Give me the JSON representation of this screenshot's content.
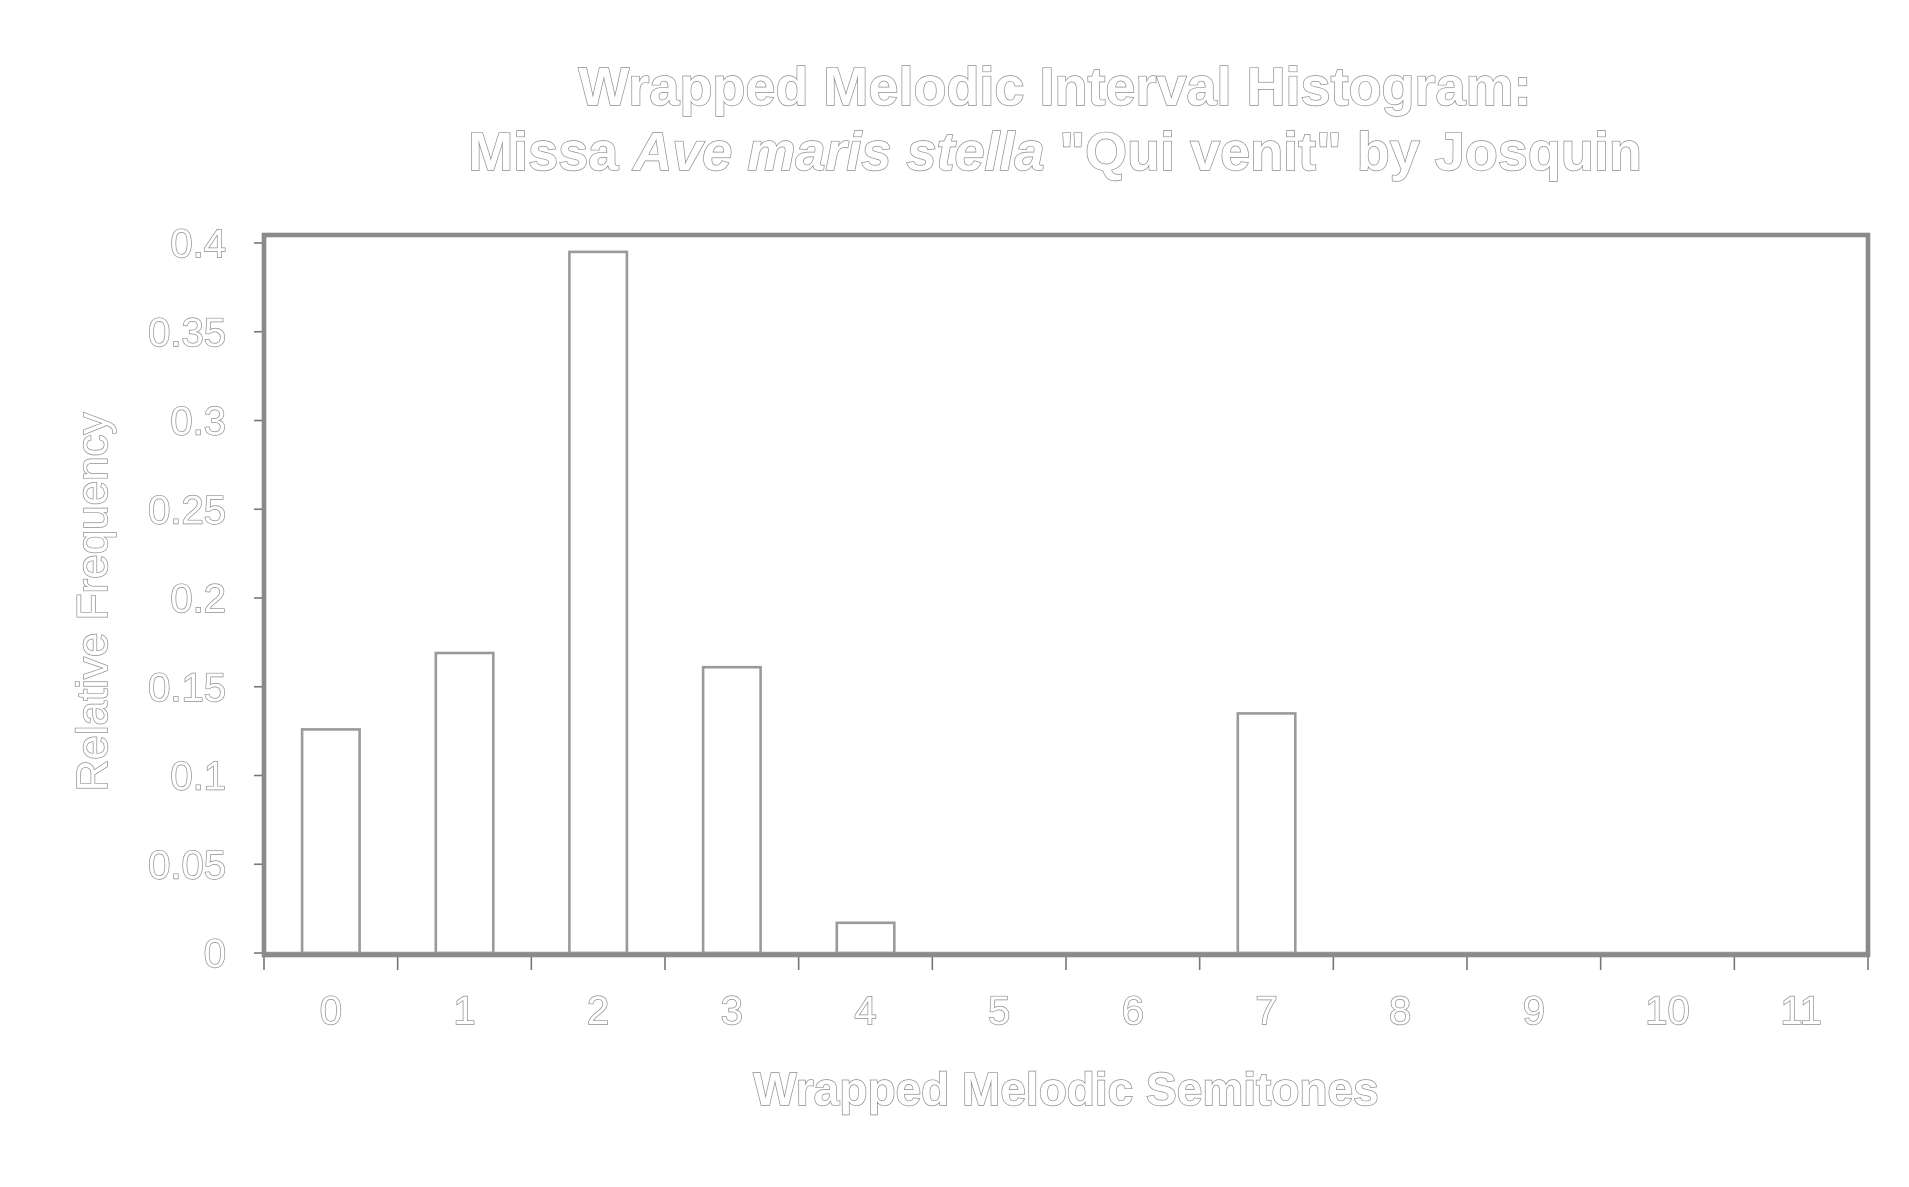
{
  "chart_data": {
    "type": "bar",
    "title_line1": "Wrapped Melodic Interval Histogram:",
    "title_line2_parts": [
      "Missa ",
      "Ave maris stella",
      " \"Qui venit\" by Josquin"
    ],
    "xlabel": "Wrapped Melodic Semitones",
    "ylabel": "Relative Frequency",
    "categories": [
      "0",
      "1",
      "2",
      "3",
      "4",
      "5",
      "6",
      "7",
      "8",
      "9",
      "10",
      "11"
    ],
    "values": [
      0.126,
      0.169,
      0.395,
      0.161,
      0.017,
      0,
      0,
      0.135,
      0,
      0,
      0,
      0
    ],
    "ylim": [
      0,
      0.4
    ],
    "yticks": [
      0,
      0.05,
      0.1,
      0.15,
      0.2,
      0.25,
      0.3,
      0.35,
      0.4
    ],
    "ytick_labels": [
      "0",
      "0.05",
      "0.1",
      "0.15",
      "0.2",
      "0.25",
      "0.3",
      "0.35",
      "0.4"
    ],
    "grid": false,
    "legend": "none"
  }
}
